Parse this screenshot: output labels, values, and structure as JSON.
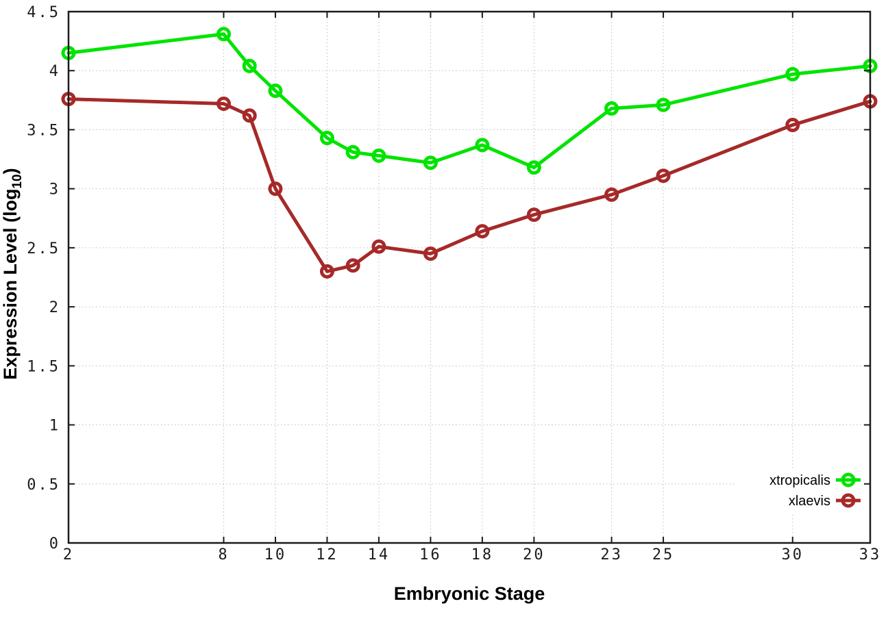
{
  "figure": {
    "background": "#ffffff",
    "border_color": "#1a1a1a",
    "grid_color": "#bcbcbc",
    "tick_color": "#1a1a1a"
  },
  "chart_data": {
    "type": "line",
    "title": "",
    "xlabel": "Embryonic Stage",
    "ylabel": {
      "prefix": "Expression Level (log",
      "sub": "10",
      "suffix": ")"
    },
    "x": [
      2,
      8,
      9,
      10,
      12,
      13,
      14,
      16,
      18,
      20,
      23,
      25,
      30,
      33
    ],
    "series": [
      {
        "name": "xtropicalis",
        "color": "#00e400",
        "values": [
          4.15,
          4.31,
          4.04,
          3.83,
          3.43,
          3.31,
          3.28,
          3.22,
          3.37,
          3.18,
          3.68,
          3.71,
          3.97,
          4.04
        ]
      },
      {
        "name": "xlaevis",
        "color": "#a62929",
        "values": [
          3.76,
          3.72,
          3.62,
          3.0,
          2.3,
          2.35,
          2.51,
          2.45,
          2.64,
          2.78,
          2.95,
          3.11,
          3.54,
          3.74
        ]
      }
    ],
    "xlim": [
      2,
      33
    ],
    "ylim": [
      0,
      4.5
    ],
    "xtick_labels": [
      "2",
      "8",
      "10",
      "12",
      "14",
      "16",
      "18",
      "20",
      "23",
      "25",
      "30",
      "33"
    ],
    "ytick_labels": [
      "0",
      "0.5",
      "1",
      "1.5",
      "2",
      "2.5",
      "3",
      "3.5",
      "4",
      "4.5"
    ],
    "grid": true,
    "grid_style": "dotted",
    "legend_position": "bottom-right",
    "marker": "open-circle"
  }
}
